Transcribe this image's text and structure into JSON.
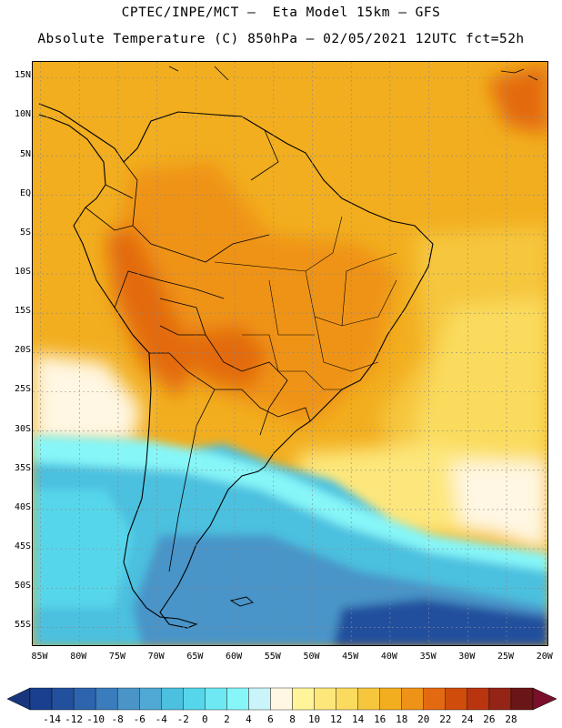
{
  "header": {
    "line1": "CPTEC/INPE/MCT –  Eta Model 15km – GFS",
    "line2": "Absolute Temperature (C) 850hPa – 02/05/2021 12UTC fct=52h"
  },
  "map": {
    "lat_labels": [
      "15N",
      "10N",
      "5N",
      "EQ",
      "5S",
      "10S",
      "15S",
      "20S",
      "25S",
      "30S",
      "35S",
      "40S",
      "45S",
      "50S",
      "55S"
    ],
    "lat_values": [
      15,
      10,
      5,
      0,
      -5,
      -10,
      -15,
      -20,
      -25,
      -30,
      -35,
      -40,
      -45,
      -50,
      -55
    ],
    "lon_labels": [
      "85W",
      "80W",
      "75W",
      "70W",
      "65W",
      "60W",
      "55W",
      "50W",
      "45W",
      "40W",
      "35W",
      "30W",
      "25W",
      "20W"
    ],
    "lon_values": [
      -85,
      -80,
      -75,
      -70,
      -65,
      -60,
      -55,
      -50,
      -45,
      -40,
      -35,
      -30,
      -25,
      -20
    ],
    "lat_range": [
      -57.5,
      17
    ],
    "lon_range": [
      -86,
      -19.5
    ],
    "grid": true
  },
  "colorbar": {
    "labels": [
      "-14",
      "-12",
      "-10",
      "-8",
      "-6",
      "-4",
      "-2",
      "0",
      "2",
      "4",
      "6",
      "8",
      "10",
      "12",
      "14",
      "16",
      "18",
      "20",
      "22",
      "24",
      "26",
      "28"
    ],
    "colors": [
      "#1a3f8f",
      "#23509d",
      "#2d64ad",
      "#3a7cbc",
      "#4a94c8",
      "#4fa9d4",
      "#4cc0df",
      "#56d6ea",
      "#6ee8f2",
      "#86f6f8",
      "#c9f4fa",
      "#fff7e3",
      "#fff49a",
      "#fde77b",
      "#fadb5d",
      "#f6c63c",
      "#f2ae1f",
      "#ef9318",
      "#e36a10",
      "#d04c0a",
      "#b83510",
      "#932416",
      "#6b1616"
    ],
    "under_color": "#17367d",
    "over_color": "#7a0f2b"
  }
}
